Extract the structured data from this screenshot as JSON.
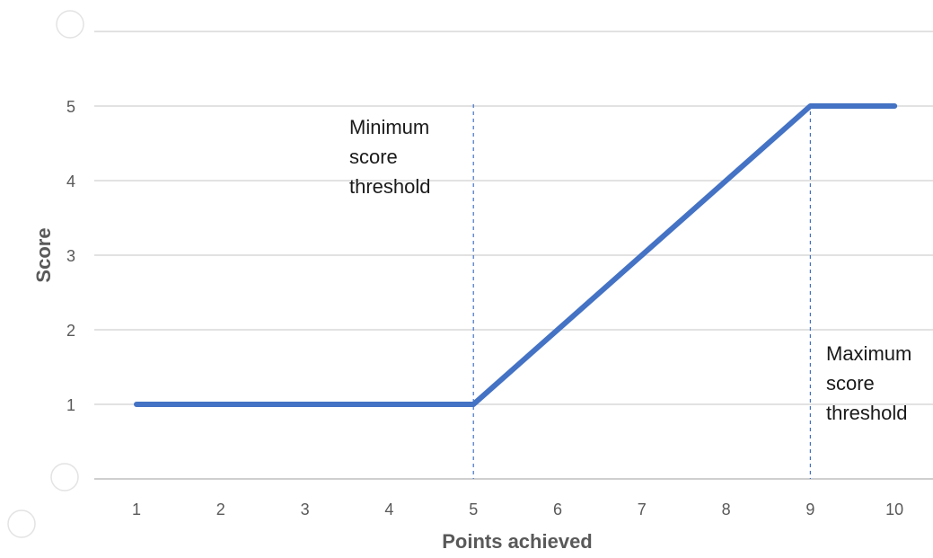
{
  "chart_data": {
    "type": "line",
    "title": "",
    "xlabel": "Points achieved",
    "ylabel": "Score",
    "x": [
      1,
      2,
      3,
      4,
      5,
      6,
      7,
      8,
      9,
      10
    ],
    "xlim": [
      0.5,
      10.5
    ],
    "ylim": [
      0,
      6
    ],
    "yticks": [
      1,
      2,
      3,
      4,
      5
    ],
    "grid": true,
    "legend": "none",
    "series": [
      {
        "values": [
          1,
          1,
          1,
          1,
          1,
          2,
          3,
          4,
          5,
          5
        ],
        "color": "#4472C4"
      }
    ],
    "annotations": [
      {
        "x": 5,
        "lines": [
          "Minimum",
          "score",
          "threshold"
        ],
        "color": "#4472C4"
      },
      {
        "x": 9,
        "lines": [
          "Maximum",
          "score",
          "threshold"
        ],
        "color": "#4472C4"
      }
    ]
  },
  "colors": {
    "series": "#4472C4",
    "grid": "#d9d9d9",
    "text": "#595959",
    "annotation_text": "#1a1a1a"
  }
}
